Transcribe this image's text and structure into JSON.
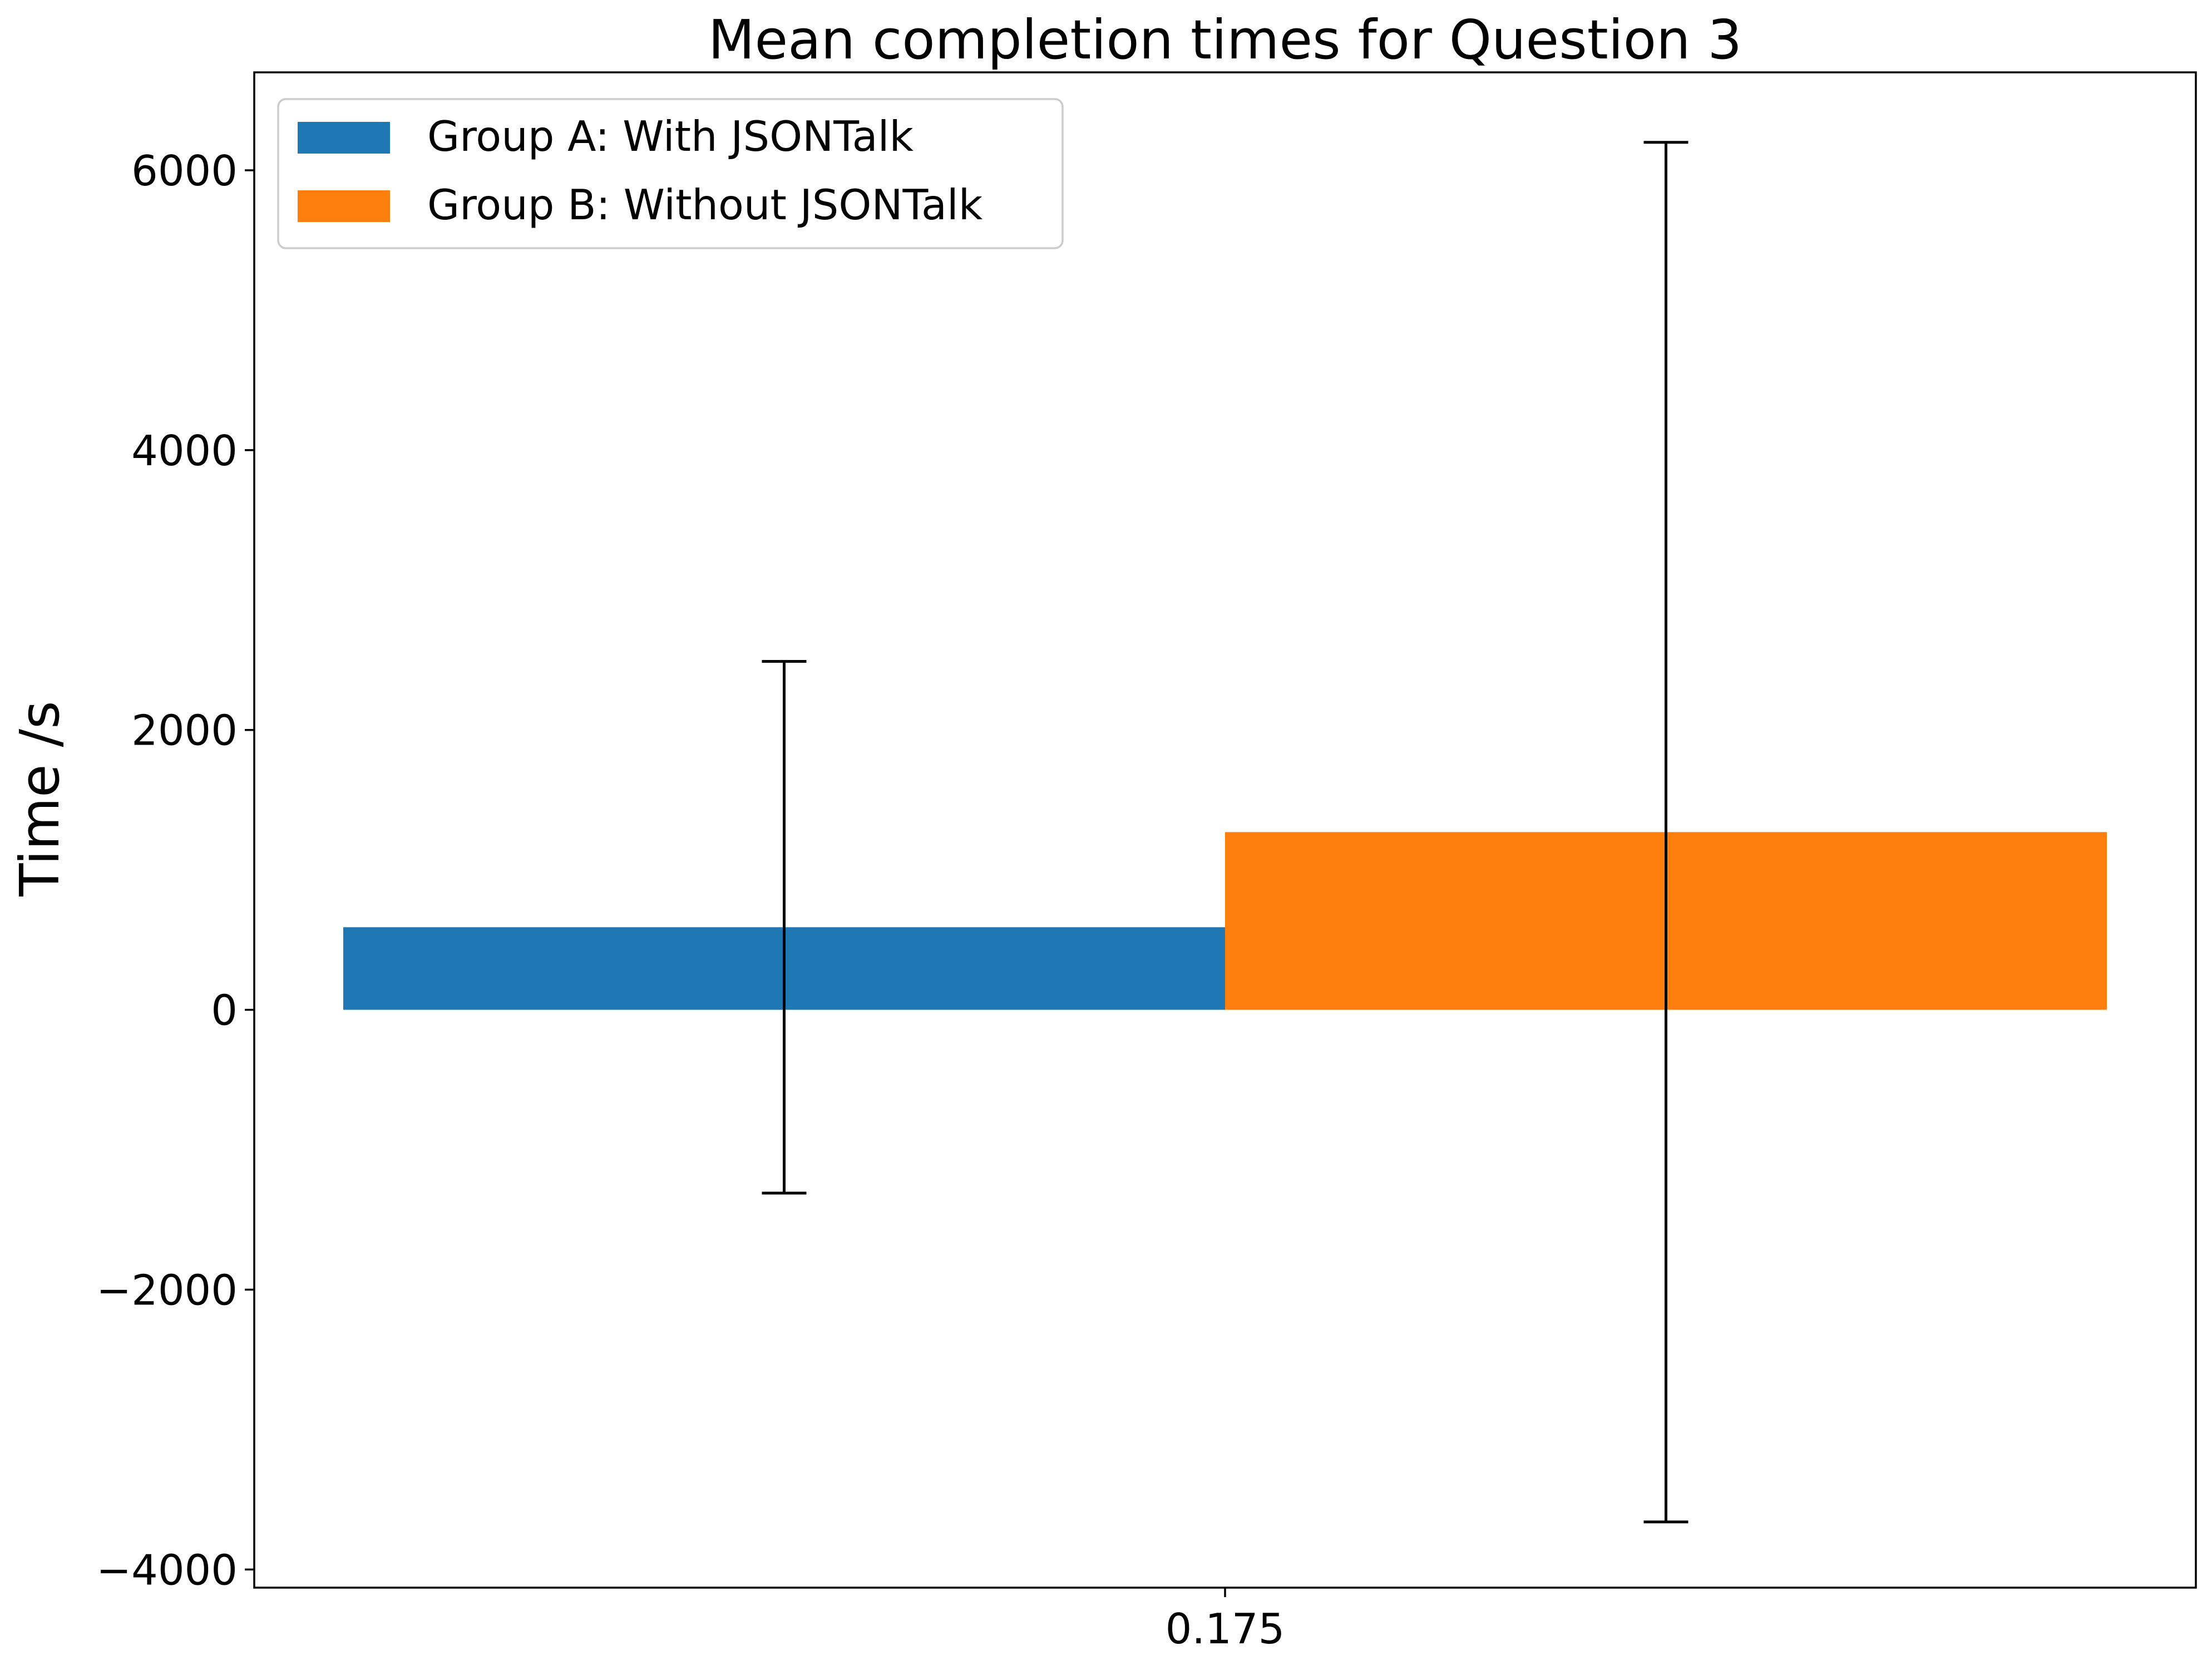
{
  "chart_data": {
    "type": "bar",
    "title": "Mean completion times for Question 3",
    "xlabel": "",
    "ylabel": "Time /s",
    "categories": [
      "0.175"
    ],
    "series": [
      {
        "name": "Group A: With JSONTalk",
        "values": [
          590
        ],
        "error": [
          1900
        ],
        "color": "#1f77b4"
      },
      {
        "name": "Group B: Without JSONTalk",
        "values": [
          1270
        ],
        "error": [
          4930
        ],
        "color": "#ff7f0e"
      }
    ],
    "ylim": [
      -4130,
      6700
    ],
    "yticks": [
      -4000,
      -2000,
      0,
      2000,
      4000,
      6000
    ],
    "ytick_labels": [
      "−4000",
      "−2000",
      "0",
      "2000",
      "4000",
      "6000"
    ],
    "legend": {
      "position": "top-left"
    },
    "grid": false
  }
}
